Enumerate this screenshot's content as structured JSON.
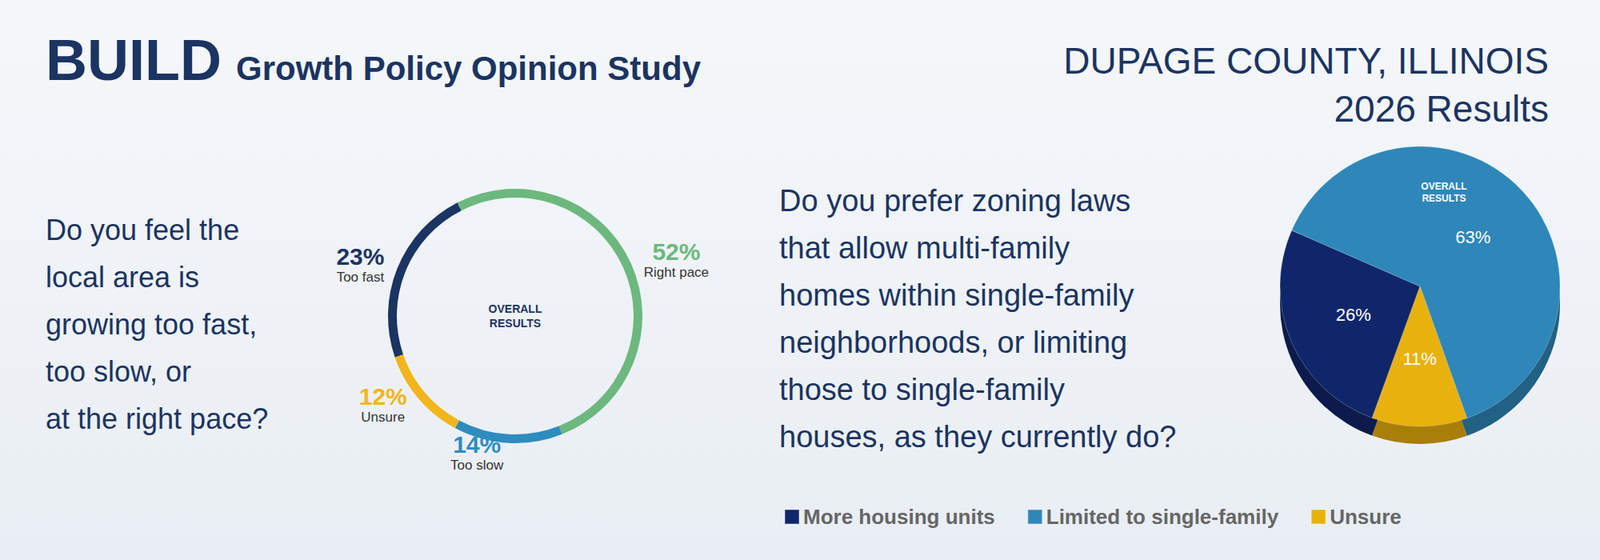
{
  "title": "BUILD",
  "subtitle": "Growth Policy Opinion Study",
  "region": "DUPAGE COUNTY, ILLINOIS",
  "period": "2026 Results",
  "chart_data": [
    {
      "type": "donut",
      "question": [
        "Do you feel the",
        "local area is",
        "growing too fast,",
        "too slow, or",
        "at the right pace?"
      ],
      "center_label": "OVERALL RESULTS",
      "categories": [
        "Too fast",
        "Right pace",
        "Too slow",
        "Unsure"
      ],
      "values": [
        23,
        52,
        14,
        12
      ],
      "value_labels": [
        "23%",
        "52%",
        "14%",
        "12%"
      ],
      "colors": [
        "#1b3461",
        "#6cb87e",
        "#2f8cbf",
        "#f2b51c"
      ],
      "data_labels": true
    },
    {
      "type": "pie",
      "question": [
        "Do you prefer zoning laws",
        "that allow multi-family",
        "homes within single-family",
        "neighborhoods, or limiting",
        "those to single-family",
        "houses, as they currently do?"
      ],
      "center_label": "OVERALL RESULTS",
      "categories": [
        "More housing units",
        "Limited to single-family",
        "Unsure"
      ],
      "values": [
        26,
        63,
        11
      ],
      "value_labels": [
        "26%",
        "63%",
        "11%"
      ],
      "colors": [
        "#10266a",
        "#2e87b8",
        "#e9b10c"
      ],
      "data_labels": true,
      "legend": "bottom"
    }
  ]
}
